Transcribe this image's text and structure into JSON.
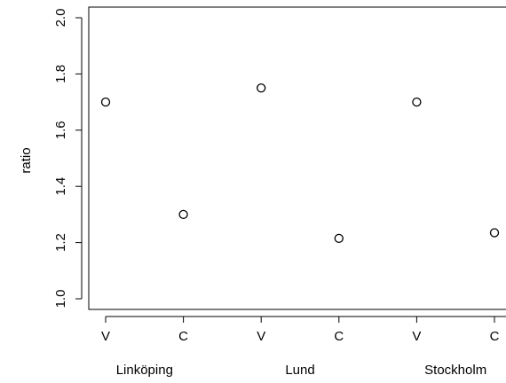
{
  "chart_data": {
    "type": "scatter",
    "title": "",
    "xlabel": "",
    "ylabel": "ratio",
    "ylim": [
      1.0,
      2.0
    ],
    "yticks": [
      "1.0",
      "1.2",
      "1.4",
      "1.6",
      "1.8",
      "2.0"
    ],
    "categories": [
      "V",
      "C",
      "V",
      "C",
      "V",
      "C"
    ],
    "groups": [
      "Linköping",
      "Lund",
      "Stockholm"
    ],
    "values": [
      1.7,
      1.3,
      1.75,
      1.215,
      1.7,
      1.235
    ],
    "grid": false,
    "legend": "none",
    "marker": "open-circle",
    "colors": {
      "points": "#000000",
      "axes": "#000000",
      "background": "#ffffff"
    }
  }
}
